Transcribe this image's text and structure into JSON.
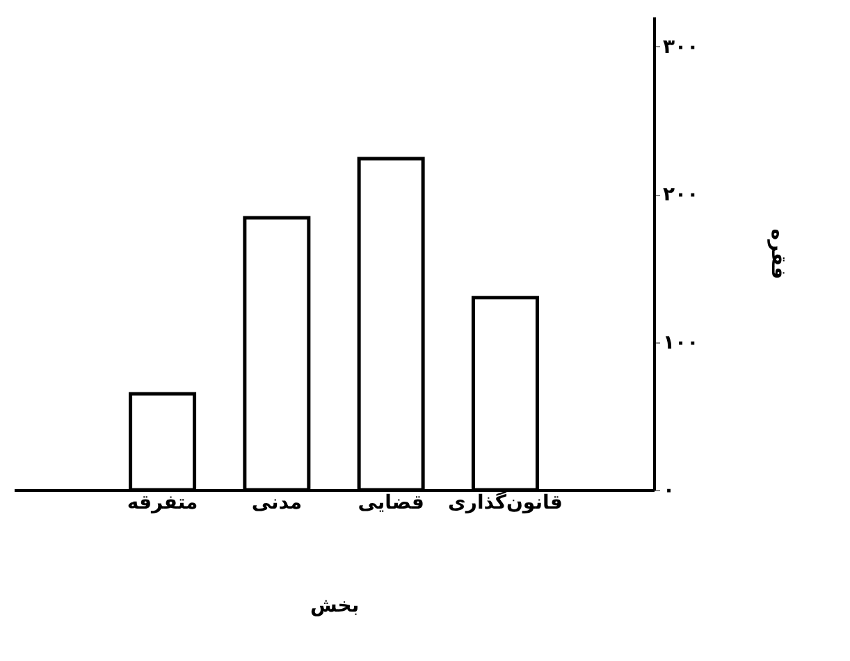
{
  "chart_data": {
    "type": "bar",
    "xlabel": "بخش",
    "ylabel": "فقره",
    "categories": [
      "متفرقه",
      "مدنی",
      "قضایی",
      "قانون‌گذاری"
    ],
    "values": [
      65,
      184,
      224,
      130
    ],
    "color": "#ffffff",
    "ylim": [
      0,
      320
    ],
    "yticks": [
      {
        "value": 0,
        "label": "۰"
      },
      {
        "value": 100,
        "label": "۱۰۰"
      },
      {
        "value": 200,
        "label": "۲۰۰"
      },
      {
        "value": 300,
        "label": "۳۰۰"
      }
    ],
    "grid": false
  }
}
